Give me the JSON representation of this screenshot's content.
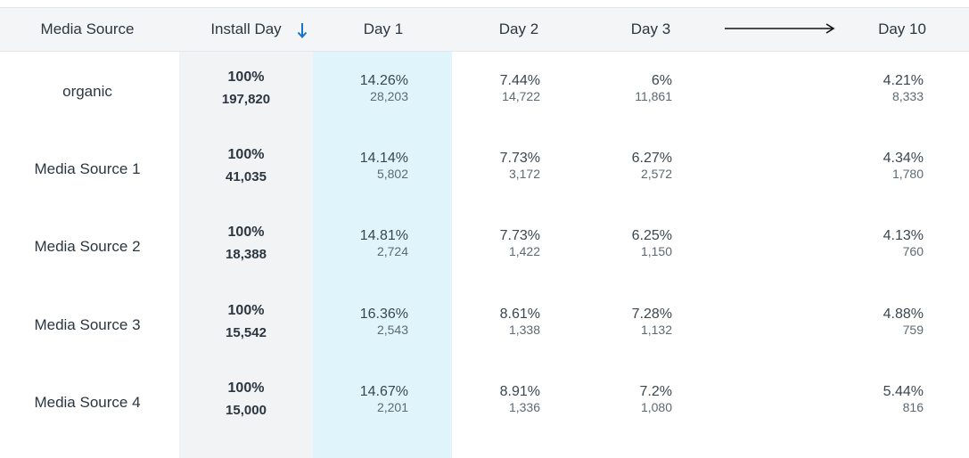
{
  "header": {
    "media_source": "Media Source",
    "install_day": "Install Day",
    "day1": "Day 1",
    "day2": "Day 2",
    "day3": "Day 3",
    "day10": "Day 10"
  },
  "rows": [
    {
      "source": "organic",
      "install_pct": "100%",
      "install_count": "197,820",
      "day1_pct": "14.26%",
      "day1_count": "28,203",
      "day2_pct": "7.44%",
      "day2_count": "14,722",
      "day3_pct": "6%",
      "day3_count": "11,861",
      "day10_pct": "4.21%",
      "day10_count": "8,333"
    },
    {
      "source": "Media Source 1",
      "install_pct": "100%",
      "install_count": "41,035",
      "day1_pct": "14.14%",
      "day1_count": "5,802",
      "day2_pct": "7.73%",
      "day2_count": "3,172",
      "day3_pct": "6.27%",
      "day3_count": "2,572",
      "day10_pct": "4.34%",
      "day10_count": "1,780"
    },
    {
      "source": "Media Source 2",
      "install_pct": "100%",
      "install_count": "18,388",
      "day1_pct": "14.81%",
      "day1_count": "2,724",
      "day2_pct": "7.73%",
      "day2_count": "1,422",
      "day3_pct": "6.25%",
      "day3_count": "1,150",
      "day10_pct": "4.13%",
      "day10_count": "760"
    },
    {
      "source": "Media Source 3",
      "install_pct": "100%",
      "install_count": "15,542",
      "day1_pct": "16.36%",
      "day1_count": "2,543",
      "day2_pct": "8.61%",
      "day2_count": "1,338",
      "day3_pct": "7.28%",
      "day3_count": "1,132",
      "day10_pct": "4.88%",
      "day10_count": "759"
    },
    {
      "source": "Media Source 4",
      "install_pct": "100%",
      "install_count": "15,000",
      "day1_pct": "14.67%",
      "day1_count": "2,201",
      "day2_pct": "8.91%",
      "day2_count": "1,336",
      "day3_pct": "7.2%",
      "day3_count": "1,080",
      "day10_pct": "5.44%",
      "day10_count": "816"
    }
  ],
  "icons": {
    "sort": "sort-down-arrow-icon",
    "range": "long-right-arrow-icon"
  },
  "colors": {
    "accent": "#1a73c9",
    "header_bg": "#f4f5f7",
    "install_col_bg": "#f2f3f5",
    "day1_col_bg": "#e0f4fb"
  }
}
